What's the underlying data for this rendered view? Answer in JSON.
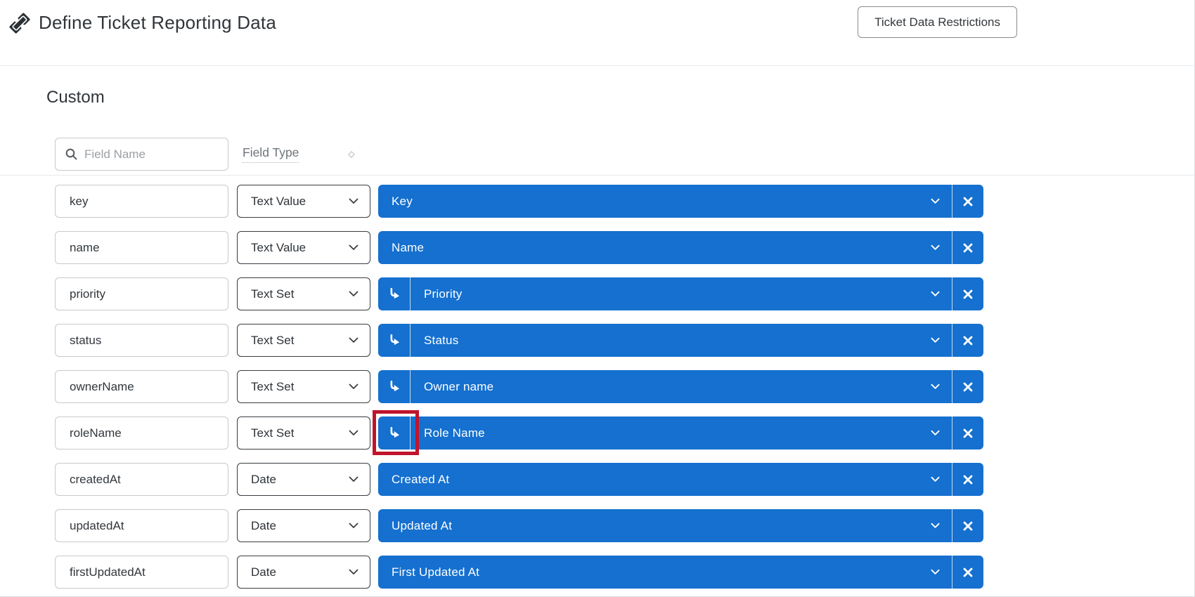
{
  "header": {
    "title": "Define Ticket Reporting Data",
    "restrictions_button": "Ticket Data Restrictions"
  },
  "section": {
    "heading": "Custom",
    "search_placeholder": "Field Name",
    "field_type_label": "Field Type"
  },
  "colors": {
    "accent_blue": "#1570CF",
    "highlight_red": "#C0142C"
  },
  "icons": {
    "header": "ticket-icon",
    "search": "search-icon",
    "field_type_sort": "diamond-icon",
    "dropdowns": "chevron-down-icon",
    "indent": "indent-arrow-icon",
    "remove": "x-icon"
  },
  "rows": [
    {
      "field_name": "key",
      "field_type": "Text Value",
      "mapped_label": "Key",
      "indented": false,
      "highlighted": false
    },
    {
      "field_name": "name",
      "field_type": "Text Value",
      "mapped_label": "Name",
      "indented": false,
      "highlighted": false
    },
    {
      "field_name": "priority",
      "field_type": "Text Set",
      "mapped_label": "Priority",
      "indented": true,
      "highlighted": false
    },
    {
      "field_name": "status",
      "field_type": "Text Set",
      "mapped_label": "Status",
      "indented": true,
      "highlighted": false
    },
    {
      "field_name": "ownerName",
      "field_type": "Text Set",
      "mapped_label": "Owner name",
      "indented": true,
      "highlighted": false
    },
    {
      "field_name": "roleName",
      "field_type": "Text Set",
      "mapped_label": "Role Name",
      "indented": true,
      "highlighted": true
    },
    {
      "field_name": "createdAt",
      "field_type": "Date",
      "mapped_label": "Created At",
      "indented": false,
      "highlighted": false
    },
    {
      "field_name": "updatedAt",
      "field_type": "Date",
      "mapped_label": "Updated At",
      "indented": false,
      "highlighted": false
    },
    {
      "field_name": "firstUpdatedAt",
      "field_type": "Date",
      "mapped_label": "First Updated At",
      "indented": false,
      "highlighted": false
    }
  ]
}
